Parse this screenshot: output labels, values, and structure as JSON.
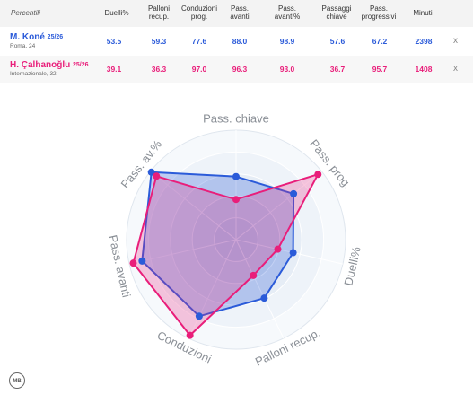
{
  "table": {
    "header": {
      "first": "Percentili",
      "columns": [
        "Duelli%",
        "Palloni recup.",
        "Conduzioni prog.",
        "Pass. avanti",
        "Pass. avanti%",
        "Passaggi chiave",
        "Pass. progressivi",
        "Minuti"
      ]
    },
    "players": [
      {
        "name": "M. Koné",
        "season": "25/26",
        "sub": "Roma, 24",
        "color": "#2b5bd9",
        "values": [
          "53.5",
          "59.3",
          "77.6",
          "88.0",
          "98.9",
          "57.6",
          "67.2",
          "2398"
        ],
        "remove": "x"
      },
      {
        "name": "H. Çalhanoğlu",
        "season": "25/26",
        "sub": "Internazionale, 32",
        "color": "#e91e7a",
        "values": [
          "39.1",
          "36.3",
          "97.0",
          "96.3",
          "93.0",
          "36.7",
          "95.7",
          "1408"
        ],
        "remove": "x"
      }
    ]
  },
  "chart_data": {
    "type": "radar",
    "axes": [
      "Pass. chiave",
      "Pass. prog.",
      "Duelli%",
      "Palloni recup.",
      "Conduzioni",
      "Pass. avanti",
      "Pass. av.%"
    ],
    "range": [
      0,
      100
    ],
    "series": [
      {
        "name": "M. Koné",
        "color": "#2b5bd9",
        "values": [
          57.6,
          67.2,
          53.5,
          59.3,
          77.6,
          88.0,
          98.9
        ]
      },
      {
        "name": "H. Çalhanoğlu",
        "color": "#e91e7a",
        "values": [
          36.7,
          95.7,
          39.1,
          36.3,
          97.0,
          96.3,
          93.0
        ]
      }
    ]
  },
  "logo": {
    "text": "MB"
  }
}
